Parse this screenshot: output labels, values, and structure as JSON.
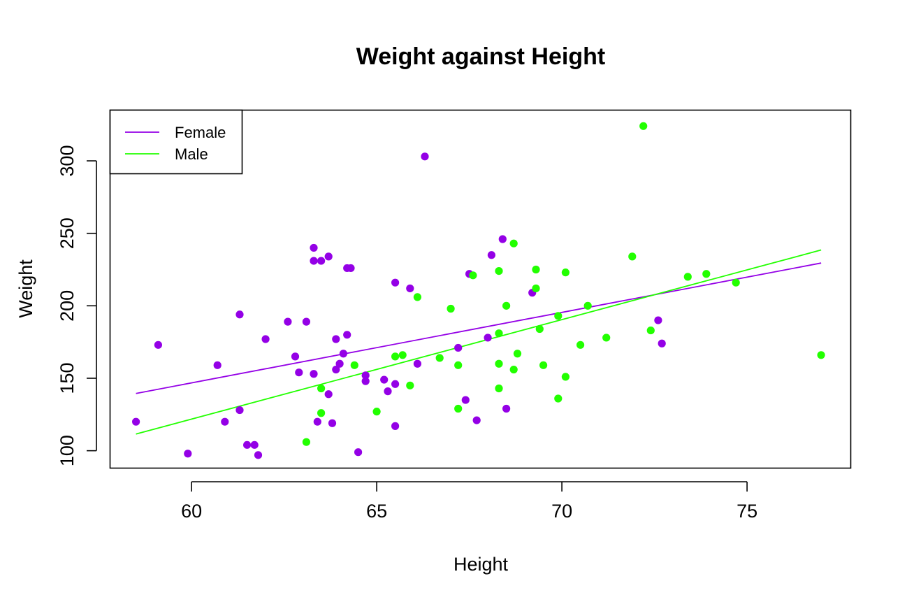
{
  "chart_data": {
    "type": "scatter",
    "title": "Weight against Height",
    "xlabel": "Height",
    "ylabel": "Weight",
    "xlim": [
      57.8,
      77.8
    ],
    "ylim": [
      88,
      335
    ],
    "xticks": [
      60,
      65,
      70,
      75
    ],
    "yticks": [
      100,
      150,
      200,
      250,
      300
    ],
    "grid": false,
    "legend_position": "top-left",
    "series": [
      {
        "name": "Female",
        "color": "#9400e6",
        "points": [
          [
            58.5,
            120
          ],
          [
            59.1,
            173
          ],
          [
            59.9,
            98
          ],
          [
            60.7,
            159
          ],
          [
            60.9,
            120
          ],
          [
            61.3,
            194
          ],
          [
            61.3,
            128
          ],
          [
            61.5,
            104
          ],
          [
            61.7,
            104
          ],
          [
            61.8,
            97
          ],
          [
            62.0,
            177
          ],
          [
            62.6,
            189
          ],
          [
            62.8,
            165
          ],
          [
            62.9,
            154
          ],
          [
            63.1,
            189
          ],
          [
            63.3,
            240
          ],
          [
            63.3,
            231
          ],
          [
            63.3,
            153
          ],
          [
            63.4,
            120
          ],
          [
            63.5,
            231
          ],
          [
            63.7,
            234
          ],
          [
            63.7,
            139
          ],
          [
            63.8,
            119
          ],
          [
            63.9,
            177
          ],
          [
            63.9,
            156
          ],
          [
            64.0,
            160
          ],
          [
            64.1,
            167
          ],
          [
            64.2,
            180
          ],
          [
            64.2,
            226
          ],
          [
            64.3,
            226
          ],
          [
            64.5,
            99
          ],
          [
            64.7,
            152
          ],
          [
            64.7,
            148
          ],
          [
            65.2,
            149
          ],
          [
            65.3,
            141
          ],
          [
            65.5,
            216
          ],
          [
            65.5,
            146
          ],
          [
            65.5,
            117
          ],
          [
            65.9,
            212
          ],
          [
            66.1,
            160
          ],
          [
            66.3,
            303
          ],
          [
            67.2,
            171
          ],
          [
            67.4,
            135
          ],
          [
            67.5,
            222
          ],
          [
            67.7,
            121
          ],
          [
            68.0,
            178
          ],
          [
            68.1,
            235
          ],
          [
            68.4,
            246
          ],
          [
            68.5,
            129
          ],
          [
            69.2,
            209
          ],
          [
            72.6,
            190
          ],
          [
            72.7,
            174
          ]
        ],
        "fit": {
          "x": [
            58.5,
            77.0
          ],
          "y": [
            139.5,
            229.5
          ]
        }
      },
      {
        "name": "Male",
        "color": "#22ff00",
        "points": [
          [
            63.1,
            106
          ],
          [
            63.5,
            143
          ],
          [
            63.5,
            126
          ],
          [
            64.4,
            159
          ],
          [
            65.0,
            127
          ],
          [
            65.5,
            165
          ],
          [
            65.7,
            166
          ],
          [
            65.9,
            145
          ],
          [
            66.1,
            206
          ],
          [
            66.7,
            164
          ],
          [
            67.0,
            198
          ],
          [
            67.2,
            129
          ],
          [
            67.2,
            159
          ],
          [
            67.6,
            221
          ],
          [
            68.3,
            224
          ],
          [
            68.3,
            181
          ],
          [
            68.3,
            160
          ],
          [
            68.3,
            143
          ],
          [
            68.5,
            200
          ],
          [
            68.7,
            243
          ],
          [
            68.7,
            156
          ],
          [
            68.8,
            167
          ],
          [
            69.3,
            225
          ],
          [
            69.3,
            212
          ],
          [
            69.4,
            184
          ],
          [
            69.5,
            159
          ],
          [
            69.9,
            193
          ],
          [
            69.9,
            136
          ],
          [
            70.1,
            223
          ],
          [
            70.1,
            151
          ],
          [
            70.5,
            173
          ],
          [
            70.7,
            200
          ],
          [
            71.2,
            178
          ],
          [
            71.9,
            234
          ],
          [
            72.2,
            324
          ],
          [
            72.4,
            183
          ],
          [
            73.4,
            220
          ],
          [
            73.9,
            222
          ],
          [
            74.7,
            216
          ],
          [
            77.0,
            166
          ]
        ],
        "fit": {
          "x": [
            58.5,
            77.0
          ],
          "y": [
            111.5,
            238.5
          ]
        }
      }
    ]
  }
}
